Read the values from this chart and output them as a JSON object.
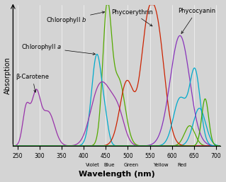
{
  "xlabel": "Wavelength (nm)",
  "ylabel": "Absorption",
  "xlim": [
    240,
    710
  ],
  "ylim": [
    0,
    1.05
  ],
  "bg_color": "#d4d4d4",
  "grid_color": "#ffffff",
  "x_ticks": [
    250,
    300,
    350,
    400,
    450,
    500,
    550,
    600,
    650,
    700
  ],
  "color_labels": [
    {
      "label": "Violet",
      "x": 420
    },
    {
      "label": "Blue",
      "x": 458
    },
    {
      "label": "Green",
      "x": 507
    },
    {
      "label": "Yellow",
      "x": 574
    },
    {
      "label": "Red",
      "x": 622
    }
  ]
}
